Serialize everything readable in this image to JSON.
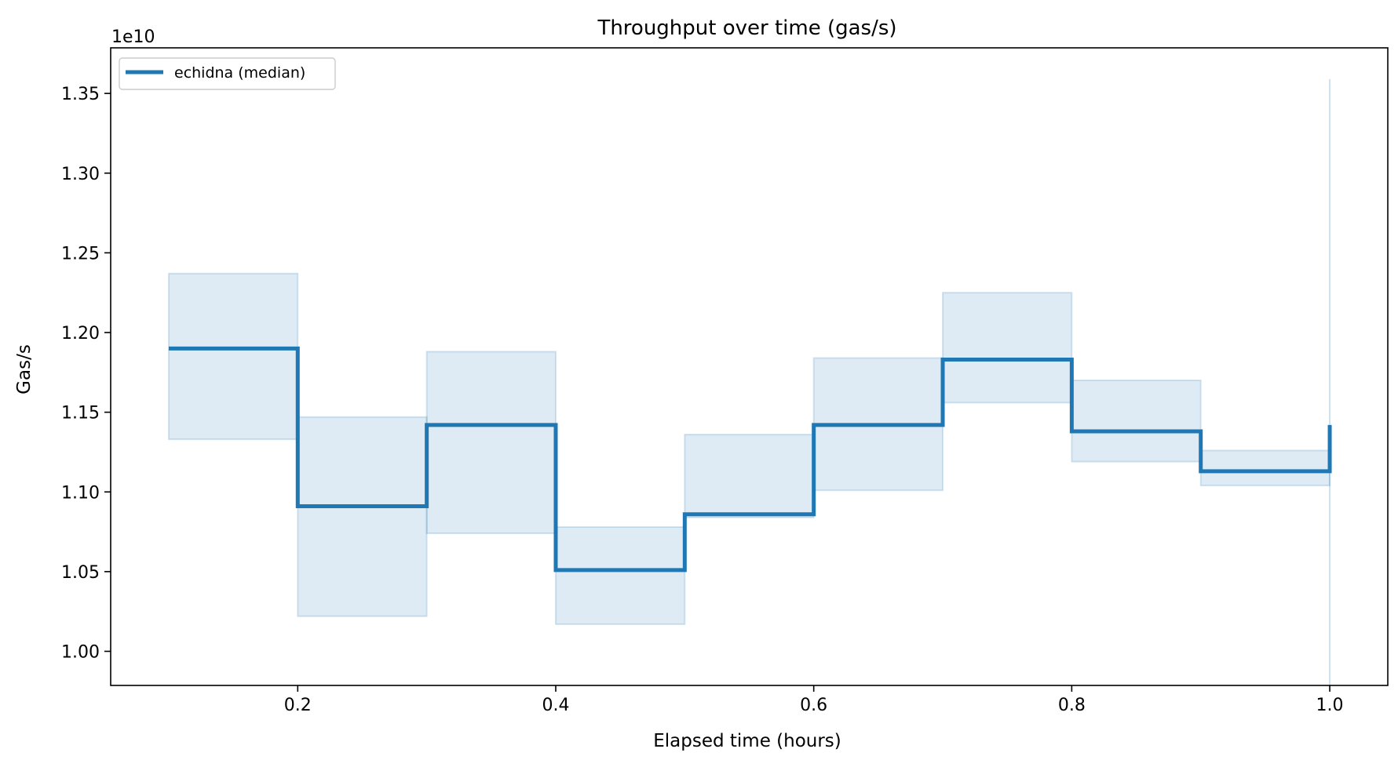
{
  "chart_data": {
    "type": "line",
    "title": "Throughput over time (gas/s)",
    "xlabel": "Elapsed time (hours)",
    "ylabel": "Gas/s",
    "y_offset_label": "1e10",
    "xlim": [
      0.055,
      1.045
    ],
    "ylim": [
      0.9786,
      1.3786
    ],
    "x_ticks": [
      0.2,
      0.4,
      0.6,
      0.8,
      1.0
    ],
    "x_tick_labels": [
      "0.2",
      "0.4",
      "0.6",
      "0.8",
      "1.0"
    ],
    "y_ticks": [
      1.0,
      1.05,
      1.1,
      1.15,
      1.2,
      1.25,
      1.3,
      1.35
    ],
    "y_tick_labels": [
      "1.00",
      "1.05",
      "1.10",
      "1.15",
      "1.20",
      "1.25",
      "1.30",
      "1.35"
    ],
    "grid": false,
    "legend_position": "top-left",
    "step": "post",
    "series": [
      {
        "name": "echidna (median)",
        "color": "#1f77b4",
        "x": [
          0.1,
          0.2,
          0.3,
          0.4,
          0.5,
          0.6,
          0.7,
          0.8,
          0.9,
          1.0
        ],
        "values": [
          1.19,
          1.091,
          1.142,
          1.051,
          1.086,
          1.142,
          1.183,
          1.138,
          1.113,
          1.142
        ],
        "band_low": [
          1.133,
          1.022,
          1.074,
          1.017,
          1.084,
          1.101,
          1.156,
          1.119,
          1.104,
          0.978
        ],
        "band_high": [
          1.237,
          1.147,
          1.188,
          1.078,
          1.136,
          1.184,
          1.225,
          1.17,
          1.126,
          1.359
        ]
      }
    ]
  }
}
